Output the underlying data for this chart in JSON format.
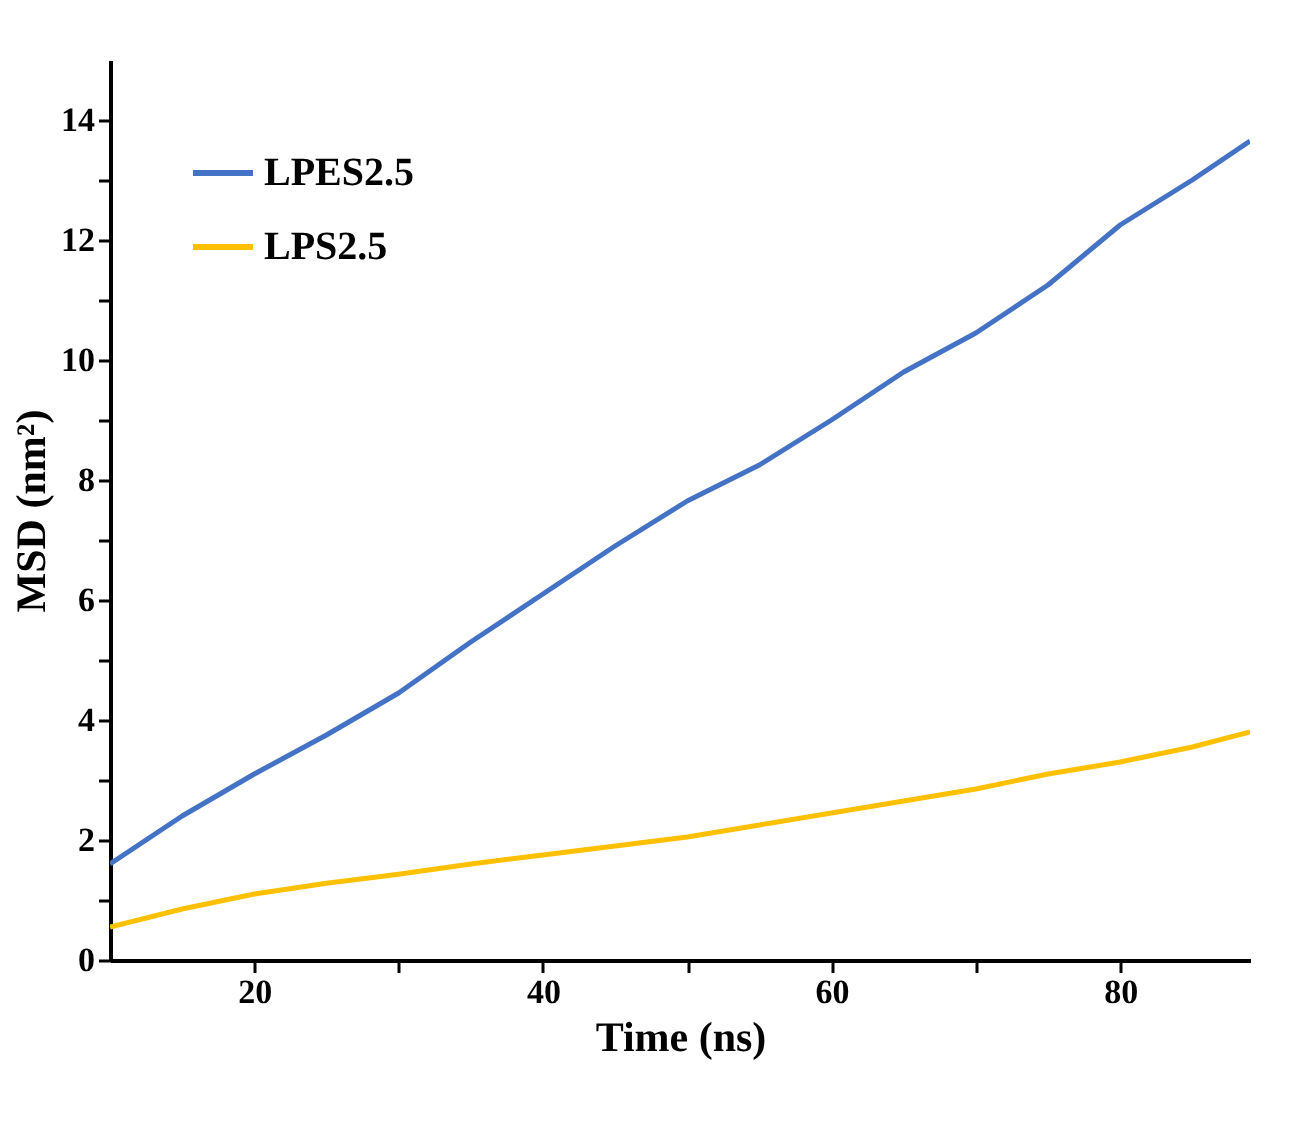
{
  "chart_data": {
    "type": "line",
    "xlabel": "Time (ns)",
    "ylabel": "MSD (nm²)",
    "xlim": [
      10,
      89
    ],
    "ylim": [
      0,
      15
    ],
    "xticks": [
      20,
      {
        "value": 30,
        "label": null
      },
      40,
      {
        "value": 50,
        "label": null
      },
      60,
      {
        "value": 70,
        "label": null
      },
      80
    ],
    "yticks": [
      0,
      {
        "value": 1,
        "label": null
      },
      2,
      {
        "value": 3,
        "label": null
      },
      4,
      {
        "value": 5,
        "label": null
      },
      6,
      {
        "value": 7,
        "label": null
      },
      8,
      {
        "value": 9,
        "label": null
      },
      10,
      {
        "value": 11,
        "label": null
      },
      12,
      {
        "value": 13,
        "label": null
      },
      14
    ],
    "grid": false,
    "legend": "top left",
    "marker": "none",
    "line_style": "solid",
    "x": [
      10,
      15,
      20,
      25,
      30,
      35,
      40,
      45,
      50,
      55,
      60,
      65,
      70,
      75,
      80,
      85,
      89
    ],
    "series": [
      {
        "name": "LPES2.5",
        "color": "#4472c4",
        "values": [
          1.6,
          2.4,
          3.1,
          3.75,
          4.45,
          5.3,
          6.1,
          6.9,
          7.65,
          8.25,
          9.0,
          9.8,
          10.45,
          11.25,
          12.25,
          13.0,
          13.65
        ]
      },
      {
        "name": "LPS2.5",
        "color": "#ffc000",
        "values": [
          0.55,
          0.85,
          1.1,
          1.28,
          1.43,
          1.6,
          1.75,
          1.9,
          2.05,
          2.25,
          2.45,
          2.65,
          2.85,
          3.1,
          3.3,
          3.55,
          3.8
        ]
      }
    ]
  }
}
